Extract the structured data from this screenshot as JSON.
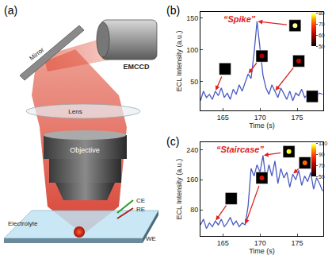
{
  "diagram": {
    "label": "(a)",
    "components": {
      "mirror": "Mirror",
      "camera": "EMCCD",
      "lens": "Lens",
      "objective": "Objective",
      "electrolyte": "Electrolyte"
    },
    "electrodes": [
      "CE",
      "RE",
      "WE"
    ]
  },
  "chart_data": [
    {
      "panel": "(b)",
      "type": "line",
      "title": "“Spike”",
      "color": "#4a5cc4",
      "x_label": "Time (s)",
      "y_label": "ECL Intensity (a.u.)",
      "x": [
        162.0,
        162.4,
        162.8,
        163.2,
        163.6,
        164.0,
        164.4,
        164.8,
        165.2,
        165.6,
        166.0,
        166.4,
        166.8,
        167.2,
        167.6,
        168.0,
        168.4,
        168.8,
        169.2,
        169.6,
        170.0,
        170.4,
        170.8,
        171.2,
        171.6,
        172.0,
        172.4,
        172.8,
        173.2,
        173.6,
        174.0,
        174.4,
        174.8,
        175.2,
        175.6,
        176.0,
        176.4,
        176.8,
        177.2,
        177.6,
        178.0,
        178.4
      ],
      "values": [
        20,
        35,
        25,
        30,
        22,
        35,
        28,
        40,
        25,
        32,
        22,
        38,
        30,
        45,
        35,
        50,
        62,
        55,
        95,
        145,
        100,
        60,
        40,
        30,
        45,
        35,
        25,
        40,
        30,
        22,
        35,
        20,
        32,
        28,
        38,
        25,
        30,
        22,
        35,
        28,
        32,
        30
      ],
      "xlim": [
        162,
        178.5
      ],
      "xticks": [
        165,
        170,
        175
      ],
      "ylim": [
        5,
        160
      ],
      "yticks": [
        50,
        100,
        150
      ],
      "insets": {
        "times": [
          164.0,
          168.4,
          169.6,
          172.0,
          176.4
        ],
        "levels": [
          50,
          60,
          79,
          62,
          50
        ]
      },
      "colorbar": {
        "range": [
          50,
          80
        ],
        "ticks": [
          50,
          60,
          70,
          80
        ]
      }
    },
    {
      "panel": "(c)",
      "type": "line",
      "title": "“Staircase”",
      "color": "#4a5cc4",
      "x_label": "Time (s)",
      "y_label": "ECL Intensity (a.u.)",
      "x": [
        162.0,
        162.4,
        162.8,
        163.2,
        163.6,
        164.0,
        164.4,
        164.8,
        165.2,
        165.6,
        166.0,
        166.4,
        166.8,
        167.2,
        167.6,
        168.0,
        168.4,
        168.8,
        169.2,
        169.6,
        170.0,
        170.4,
        170.8,
        171.2,
        171.6,
        172.0,
        172.4,
        172.8,
        173.2,
        173.6,
        174.0,
        174.4,
        174.8,
        175.2,
        175.6,
        176.0,
        176.4,
        176.8,
        177.2,
        177.6,
        178.0,
        178.4
      ],
      "values": [
        40,
        55,
        30,
        45,
        35,
        50,
        40,
        55,
        35,
        45,
        60,
        40,
        50,
        35,
        45,
        40,
        90,
        190,
        170,
        200,
        180,
        225,
        160,
        200,
        170,
        210,
        150,
        190,
        165,
        180,
        140,
        175,
        160,
        185,
        145,
        170,
        155,
        180,
        135,
        165,
        150,
        130
      ],
      "xlim": [
        162,
        178.5
      ],
      "xticks": [
        165,
        170,
        175
      ],
      "ylim": [
        10,
        260
      ],
      "yticks": [
        80,
        160,
        240
      ],
      "insets": {
        "times": [
          164.0,
          168.0,
          170.4,
          174.4
        ],
        "levels": [
          50,
          78,
          106,
          92
        ]
      },
      "colorbar": {
        "range": [
          50,
          110
        ],
        "ticks": [
          50,
          70,
          90,
          110
        ]
      }
    }
  ]
}
